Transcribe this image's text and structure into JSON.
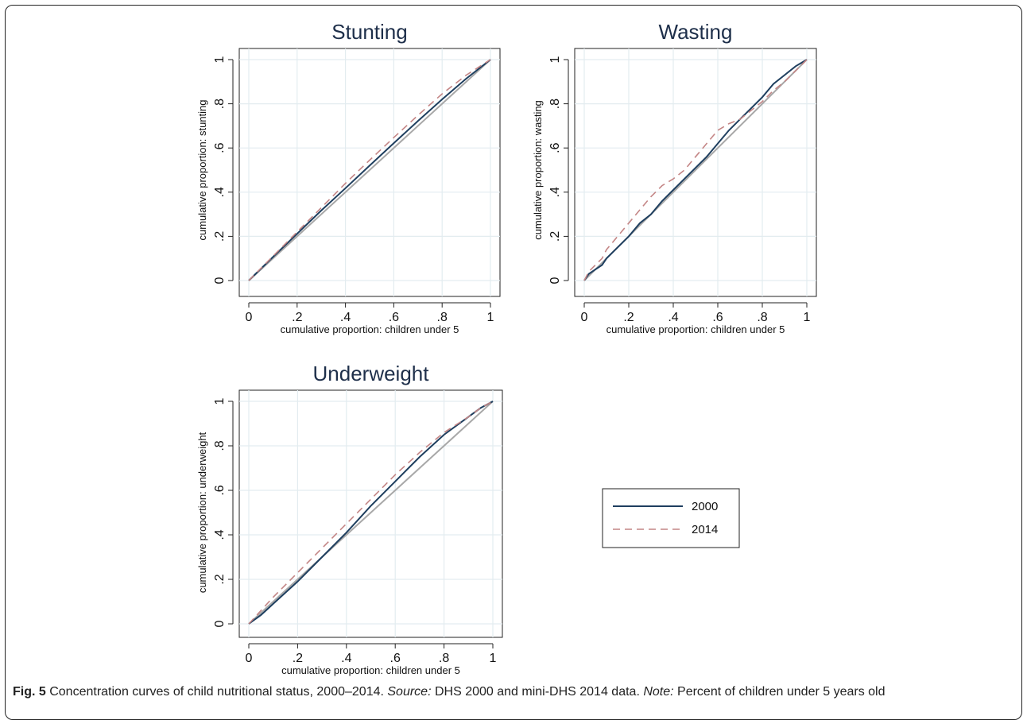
{
  "figure": {
    "caption": {
      "label": "Fig. 5",
      "title": " Concentration curves of child nutritional status, 2000–2014. ",
      "source_label": "Source:",
      "source_text": " DHS 2000 and mini-DHS 2014 data. ",
      "note_label": "Note:",
      "note_text": " Percent of children under 5 years old"
    }
  },
  "colors": {
    "series_2000": "#1f3f5f",
    "series_2014": "#c48686",
    "equality": "#a8a8a8",
    "grid": "#e3ecf0",
    "title": "#1e2f4a"
  },
  "legend": {
    "items": [
      "2000",
      "2014"
    ],
    "placement": "right of Underweight panel"
  },
  "chart_data": [
    {
      "type": "line",
      "title": "Stunting",
      "xlabel": "cumulative proportion: children under 5",
      "ylabel": "cumulative proportion: stunting",
      "xlim": [
        0,
        1
      ],
      "ylim": [
        0,
        1
      ],
      "x_ticks": [
        "0",
        ".2",
        ".4",
        ".6",
        ".8",
        "1"
      ],
      "y_ticks": [
        "0",
        ".2",
        ".4",
        ".6",
        ".8",
        "1"
      ],
      "grid": true,
      "series": [
        {
          "name": "2000",
          "x": [
            0,
            0.1,
            0.2,
            0.3,
            0.4,
            0.5,
            0.6,
            0.7,
            0.8,
            0.9,
            1.0
          ],
          "y": [
            0,
            0.107,
            0.212,
            0.317,
            0.418,
            0.52,
            0.622,
            0.722,
            0.82,
            0.914,
            1.0
          ]
        },
        {
          "name": "2014",
          "x": [
            0,
            0.1,
            0.2,
            0.3,
            0.4,
            0.5,
            0.6,
            0.7,
            0.8,
            0.9,
            1.0
          ],
          "y": [
            0,
            0.11,
            0.22,
            0.33,
            0.44,
            0.545,
            0.647,
            0.748,
            0.845,
            0.93,
            1.0
          ]
        }
      ]
    },
    {
      "type": "line",
      "title": "Wasting",
      "xlabel": "cumulative proportion: children under 5",
      "ylabel": "cumulative proportion: wasting",
      "xlim": [
        0,
        1
      ],
      "ylim": [
        0,
        1
      ],
      "x_ticks": [
        "0",
        ".2",
        ".4",
        ".6",
        ".8",
        "1"
      ],
      "y_ticks": [
        "0",
        ".2",
        ".4",
        ".6",
        ".8",
        "1"
      ],
      "grid": true,
      "series": [
        {
          "name": "2000",
          "x": [
            0,
            0.02,
            0.05,
            0.08,
            0.1,
            0.15,
            0.2,
            0.25,
            0.3,
            0.35,
            0.4,
            0.45,
            0.5,
            0.55,
            0.6,
            0.65,
            0.7,
            0.75,
            0.8,
            0.85,
            0.9,
            0.95,
            1.0
          ],
          "y": [
            0,
            0.03,
            0.05,
            0.07,
            0.1,
            0.15,
            0.2,
            0.26,
            0.3,
            0.36,
            0.41,
            0.46,
            0.51,
            0.56,
            0.62,
            0.68,
            0.73,
            0.78,
            0.83,
            0.89,
            0.93,
            0.97,
            1.0
          ]
        },
        {
          "name": "2014",
          "x": [
            0,
            0.02,
            0.05,
            0.08,
            0.1,
            0.15,
            0.2,
            0.25,
            0.3,
            0.35,
            0.4,
            0.45,
            0.5,
            0.55,
            0.6,
            0.65,
            0.7,
            0.75,
            0.8,
            0.85,
            0.9,
            0.95,
            1.0
          ],
          "y": [
            0,
            0.04,
            0.07,
            0.1,
            0.14,
            0.2,
            0.26,
            0.32,
            0.38,
            0.43,
            0.46,
            0.5,
            0.56,
            0.62,
            0.68,
            0.71,
            0.73,
            0.77,
            0.81,
            0.86,
            0.9,
            0.95,
            1.0
          ]
        }
      ]
    },
    {
      "type": "line",
      "title": "Underweight",
      "xlabel": "cumulative proportion: children under 5",
      "ylabel": "cumulative proportion: underweight",
      "xlim": [
        0,
        1
      ],
      "ylim": [
        0,
        1
      ],
      "x_ticks": [
        "0",
        ".2",
        ".4",
        ".6",
        ".8",
        "1"
      ],
      "y_ticks": [
        "0",
        ".2",
        ".4",
        ".6",
        ".8",
        "1"
      ],
      "grid": true,
      "series": [
        {
          "name": "2000",
          "x": [
            0,
            0.05,
            0.1,
            0.2,
            0.3,
            0.4,
            0.5,
            0.6,
            0.7,
            0.8,
            0.9,
            0.95,
            1.0
          ],
          "y": [
            0,
            0.04,
            0.09,
            0.19,
            0.3,
            0.41,
            0.53,
            0.64,
            0.75,
            0.85,
            0.93,
            0.97,
            1.0
          ]
        },
        {
          "name": "2014",
          "x": [
            0,
            0.05,
            0.1,
            0.2,
            0.3,
            0.4,
            0.5,
            0.6,
            0.7,
            0.8,
            0.9,
            0.95,
            1.0
          ],
          "y": [
            0,
            0.06,
            0.12,
            0.23,
            0.34,
            0.45,
            0.56,
            0.67,
            0.77,
            0.86,
            0.93,
            0.97,
            1.0
          ]
        }
      ]
    }
  ]
}
